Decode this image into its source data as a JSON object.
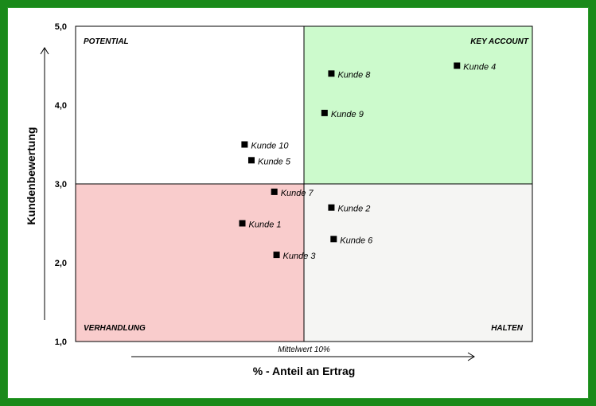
{
  "chart_data": {
    "type": "scatter",
    "xlabel": "% - Anteil an Ertrag",
    "ylabel": "Kundenbewertung",
    "ylim": [
      1,
      5
    ],
    "xlim": [
      0,
      20
    ],
    "yticks": [
      "1,0",
      "2,0",
      "3,0",
      "4,0",
      "5,0"
    ],
    "y_threshold": 3,
    "x_threshold": 10,
    "x_threshold_label": "Mittelwert 10%",
    "grid": false,
    "quadrants": {
      "top_left": "POTENTIAL",
      "top_right": "KEY ACCOUNT",
      "bottom_left": "VERHANDLUNG",
      "bottom_right": "HALTEN"
    },
    "colors": {
      "key_account": "#ccfacc",
      "verhandlung": "#f9cccc",
      "halten": "#f5f5f3",
      "potential": "#ffffff",
      "frame": "#1a8a1a"
    },
    "points": [
      {
        "name": "Kunde 1",
        "x": 7.3,
        "y": 2.5
      },
      {
        "name": "Kunde 2",
        "x": 11.2,
        "y": 2.7
      },
      {
        "name": "Kunde 3",
        "x": 8.8,
        "y": 2.1
      },
      {
        "name": "Kunde 4",
        "x": 16.7,
        "y": 4.5
      },
      {
        "name": "Kunde 5",
        "x": 7.7,
        "y": 3.3
      },
      {
        "name": "Kunde 6",
        "x": 11.3,
        "y": 2.3
      },
      {
        "name": "Kunde 7",
        "x": 8.7,
        "y": 2.9
      },
      {
        "name": "Kunde 8",
        "x": 11.2,
        "y": 4.4
      },
      {
        "name": "Kunde 9",
        "x": 10.9,
        "y": 3.9
      },
      {
        "name": "Kunde 10",
        "x": 7.4,
        "y": 3.5
      }
    ]
  }
}
